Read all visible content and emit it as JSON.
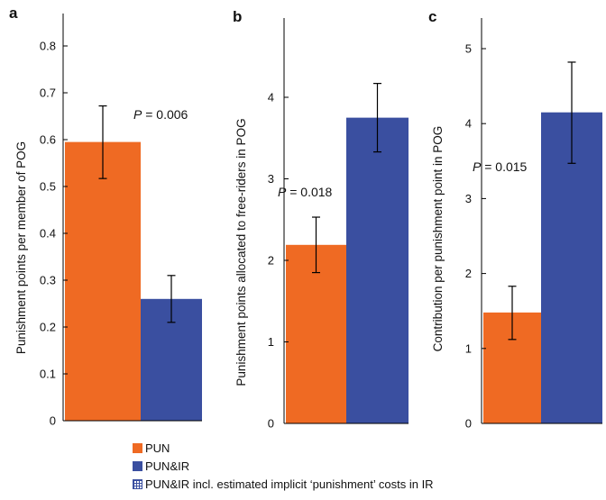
{
  "colors": {
    "pun": "#ef6a23",
    "punir": "#3a4fa0",
    "axis": "#000000",
    "text": "#111111"
  },
  "legend": {
    "items": [
      {
        "label": "PUN",
        "color": "#ef6a23",
        "style": "solid"
      },
      {
        "label": "PUN&IR",
        "color": "#3a4fa0",
        "style": "solid"
      },
      {
        "label": "PUN&IR incl. estimated implicit ‘punishment’ costs in IR",
        "color": "#3a4fa0",
        "style": "hatched"
      }
    ]
  },
  "chart_data": [
    {
      "panel": "a",
      "type": "bar",
      "ylabel": "Punishment points per member of POG",
      "ylim": [
        0,
        0.85
      ],
      "yticks": [
        "0",
        "0.1",
        "0.2",
        "0.3",
        "0.4",
        "0.5",
        "0.6",
        "0.7",
        "0.8"
      ],
      "yticks_values": [
        0,
        0.1,
        0.2,
        0.3,
        0.4,
        0.5,
        0.6,
        0.7,
        0.8
      ],
      "annotation": {
        "p": "P",
        "text": " = 0.006"
      },
      "series": [
        {
          "name": "PUN",
          "value": 0.595,
          "err_low": 0.517,
          "err_high": 0.672
        },
        {
          "name": "PUN&IR",
          "value": 0.26,
          "err_low": 0.21,
          "err_high": 0.31
        }
      ]
    },
    {
      "panel": "b",
      "type": "bar",
      "ylabel": "Punishment points allocated to free-riders in POG",
      "ylim": [
        0,
        4.65
      ],
      "yticks": [
        "0",
        "1",
        "2",
        "3",
        "4"
      ],
      "yticks_values": [
        0,
        1,
        2,
        3,
        4
      ],
      "annotation": {
        "p": "P",
        "text": " = 0.018"
      },
      "series": [
        {
          "name": "PUN",
          "value": 2.19,
          "err_low": 1.85,
          "err_high": 2.53
        },
        {
          "name": "PUN&IR",
          "value": 3.75,
          "err_low": 3.33,
          "err_high": 4.17
        }
      ]
    },
    {
      "panel": "c",
      "type": "bar",
      "ylabel": "Contribution per punishment point in POG",
      "ylim": [
        0,
        5.55
      ],
      "yticks": [
        "0",
        "1",
        "2",
        "3",
        "4",
        "5"
      ],
      "yticks_values": [
        0,
        1,
        2,
        3,
        4,
        5
      ],
      "annotation": {
        "p": "P",
        "text": " = 0.015"
      },
      "series": [
        {
          "name": "PUN",
          "value": 1.48,
          "err_low": 1.12,
          "err_high": 1.83
        },
        {
          "name": "PUN&IR",
          "value": 4.15,
          "err_low": 3.47,
          "err_high": 4.82
        }
      ]
    }
  ]
}
